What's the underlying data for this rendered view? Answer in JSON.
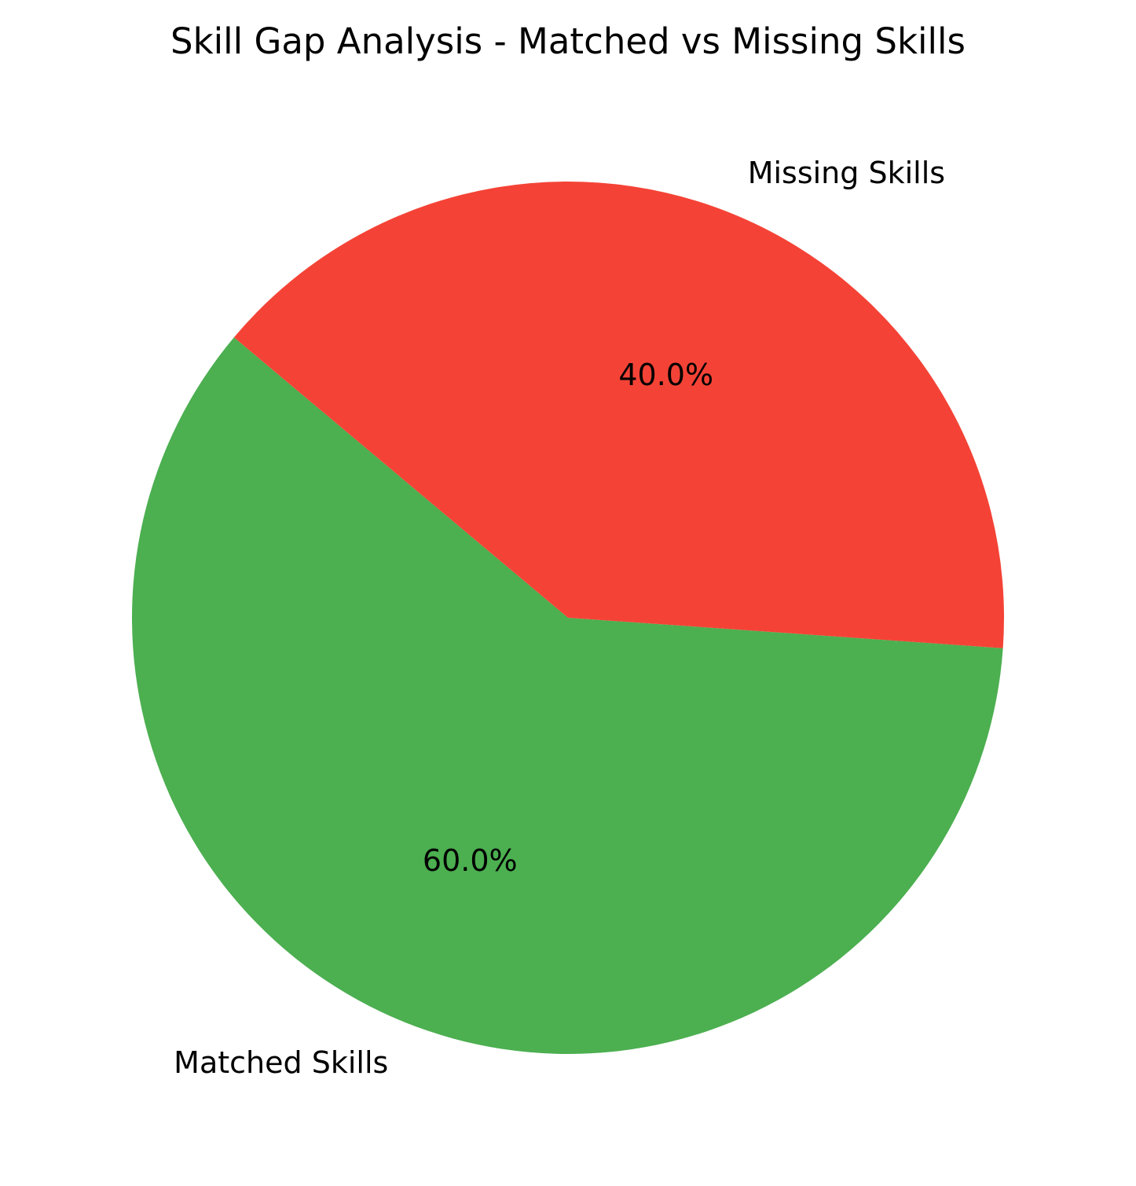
{
  "chart_data": {
    "type": "pie",
    "title": "Skill Gap Analysis - Matched vs Missing Skills",
    "slices": [
      {
        "label": "Matched Skills",
        "value": 60.0,
        "pct_label": "60.0%",
        "color": "#4caf50"
      },
      {
        "label": "Missing Skills",
        "value": 40.0,
        "pct_label": "40.0%",
        "color": "#f44336"
      }
    ],
    "start_angle_deg": 140,
    "direction": "counterclockwise"
  }
}
